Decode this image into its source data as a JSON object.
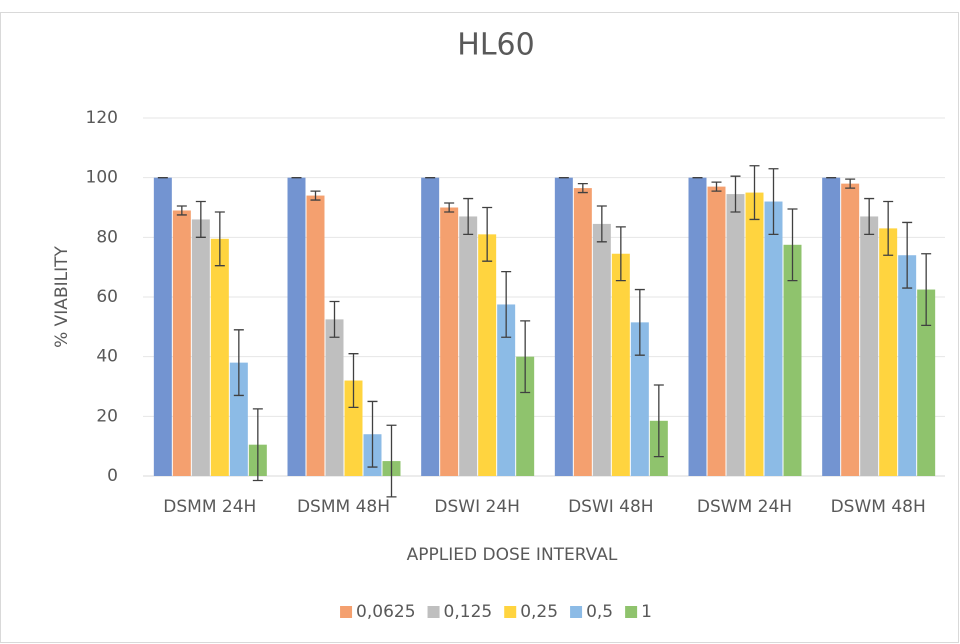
{
  "chart_data": {
    "type": "bar",
    "title": "HL60",
    "xlabel": "APPLIED DOSE INTERVAL",
    "ylabel": "% VIABILITY",
    "categories": [
      "DSMM 24H",
      "DSMM 48H",
      "DSWI 24H",
      "DSWI 48H",
      "DSWM 24H",
      "DSWM 48H"
    ],
    "series": [
      {
        "color": "#7394d1",
        "values": [
          100,
          100,
          100,
          100,
          100,
          100
        ],
        "errors": [
          0,
          0,
          0,
          0,
          0,
          0
        ]
      },
      {
        "name": "0,0625",
        "color": "#f4a06f",
        "values": [
          89,
          94,
          90,
          96.5,
          97,
          98
        ],
        "errors": [
          1.5,
          1.5,
          1.5,
          1.5,
          1.5,
          1.5
        ]
      },
      {
        "name": "0,125",
        "color": "#bfbfbf",
        "values": [
          86,
          52.5,
          87,
          84.5,
          94.5,
          87
        ],
        "errors": [
          6,
          6,
          6,
          6,
          6,
          6
        ]
      },
      {
        "name": "0,25",
        "color": "#ffd43f",
        "values": [
          79.5,
          32,
          81,
          74.5,
          95,
          83
        ],
        "errors": [
          9,
          9,
          9,
          9,
          9,
          9
        ]
      },
      {
        "name": "0,5",
        "color": "#8cbbe6",
        "values": [
          38,
          14,
          57.5,
          51.5,
          92,
          74
        ],
        "errors": [
          11,
          11,
          11,
          11,
          11,
          11
        ]
      },
      {
        "name": "1",
        "color": "#8fc36d",
        "values": [
          10.5,
          5,
          40,
          18.5,
          77.5,
          62.5
        ],
        "errors": [
          12,
          12,
          12,
          12,
          12,
          12
        ]
      }
    ],
    "ylim": [
      0,
      120
    ],
    "yticks": [
      0,
      20,
      40,
      60,
      80,
      100,
      120
    ],
    "grid": true,
    "legend": "bottom"
  }
}
